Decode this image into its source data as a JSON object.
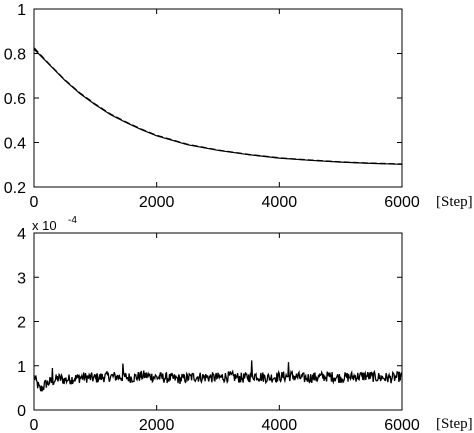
{
  "chart_data": [
    {
      "type": "line",
      "xlabel": "[Step]",
      "ylabel": "",
      "xlim": [
        0,
        6000
      ],
      "ylim": [
        0.2,
        1.0
      ],
      "x_ticks": [
        "0",
        "2000",
        "4000",
        "6000"
      ],
      "y_ticks": [
        "0.2",
        "0.4",
        "0.6",
        "0.8",
        "1"
      ],
      "grid": false,
      "series": [
        {
          "style": "solid",
          "x": [
            0,
            250,
            500,
            750,
            1000,
            1250,
            1500,
            1750,
            2000,
            2500,
            3000,
            3500,
            4000,
            4500,
            5000,
            5500,
            6000
          ],
          "values": [
            0.82,
            0.75,
            0.68,
            0.62,
            0.57,
            0.525,
            0.49,
            0.458,
            0.43,
            0.39,
            0.365,
            0.345,
            0.33,
            0.32,
            0.312,
            0.306,
            0.302
          ]
        },
        {
          "style": "dashed",
          "x": [
            0,
            250,
            500,
            750,
            1000,
            1250,
            1500,
            1750,
            2000,
            2500,
            3000,
            3500,
            4000,
            4500,
            5000,
            5500,
            6000
          ],
          "values": [
            0.825,
            0.752,
            0.682,
            0.622,
            0.572,
            0.527,
            0.492,
            0.46,
            0.432,
            0.392,
            0.366,
            0.346,
            0.331,
            0.321,
            0.313,
            0.307,
            0.303
          ]
        }
      ]
    },
    {
      "type": "line",
      "xlabel": "[Step]",
      "ylabel": "",
      "xlim": [
        0,
        6000
      ],
      "ylim": [
        0,
        4
      ],
      "y_scale_label": "x 10",
      "y_scale_exponent": "-4",
      "x_ticks": [
        "0",
        "2000",
        "4000",
        "6000"
      ],
      "y_ticks": [
        "0",
        "1",
        "2",
        "3",
        "4"
      ],
      "grid": false,
      "series": [
        {
          "style": "solid",
          "x": [
            0,
            100,
            200,
            300,
            400,
            500,
            600,
            800,
            1000,
            1200,
            1400,
            1600,
            1800,
            2000,
            2200,
            2400,
            2600,
            2800,
            3000,
            3200,
            3400,
            3600,
            3800,
            4000,
            4200,
            4400,
            4600,
            4800,
            5000,
            5200,
            5400,
            5600,
            5800,
            6000
          ],
          "values": [
            0.75,
            0.45,
            0.6,
            0.65,
            0.72,
            0.68,
            0.7,
            0.74,
            0.72,
            0.76,
            0.75,
            0.73,
            0.78,
            0.74,
            0.72,
            0.7,
            0.75,
            0.74,
            0.73,
            0.76,
            0.72,
            0.78,
            0.73,
            0.75,
            0.77,
            0.72,
            0.74,
            0.76,
            0.73,
            0.75,
            0.77,
            0.74,
            0.72,
            0.76
          ],
          "noise_amplitude": 0.12,
          "spikes": [
            [
              1450,
              1.05
            ],
            [
              3550,
              1.12
            ],
            [
              4150,
              1.08
            ],
            [
              300,
              0.95
            ]
          ]
        }
      ]
    }
  ]
}
